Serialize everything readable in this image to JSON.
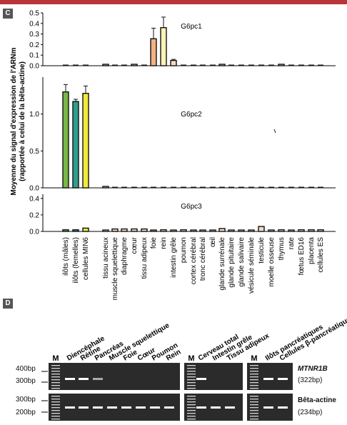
{
  "panels": {
    "c_label": "C",
    "d_label": "D"
  },
  "chart_data": {
    "type": "bar",
    "ylabel_line1": "Moyenne du signal d'expression de l'ARNm",
    "ylabel_line2": "(rapportée à celui de la bêta-actine)",
    "categories": [
      "ilôts (mâles)",
      "ilôts (femelles)",
      "cellules MIN6",
      "tissu acineux",
      "muscle squelettique",
      "diaphragme",
      "cœur",
      "tissu adipeux",
      "foie",
      "rein",
      "intestin grêle",
      "poumon",
      "cortex cérébral",
      "tronc cérébral",
      "œil",
      "glande surrénale",
      "glande pituitaire",
      "glande salivaire",
      "vésicule séminale",
      "testicule",
      "moelle osseuse",
      "thymus",
      "rate",
      "fœtus ED16",
      "placenta",
      "cellules ES"
    ],
    "bar_colors": [
      "#7ab648",
      "#2f9e8f",
      "#f2ea3a",
      "#f7d9c4",
      "#f7d9c4",
      "#f7d9c4",
      "#f7d9c4",
      "#f7d9c4",
      "#f4b183",
      "#fdf2b8",
      "#f7d9c4",
      "#f7d9c4",
      "#f7d9c4",
      "#f7d9c4",
      "#f7d9c4",
      "#f7d9c4",
      "#f7d9c4",
      "#f7d9c4",
      "#f7d9c4",
      "#f7d9c4",
      "#f7d9c4",
      "#f7d9c4",
      "#f7d9c4",
      "#f7d9c4",
      "#f7d9c4",
      "#f7d9c4"
    ],
    "subplots": [
      {
        "name": "G6pc1",
        "yticks": [
          "0.5",
          "0.4",
          "0.3",
          "0.2",
          "0.1",
          "0.0"
        ],
        "ylim": [
          0,
          0.5
        ],
        "values": [
          0,
          0,
          0,
          0.005,
          0,
          0,
          0.005,
          0,
          0.255,
          0.36,
          0.05,
          0,
          0,
          0,
          0,
          0.005,
          0,
          0,
          0,
          0,
          0,
          0.005,
          0,
          0,
          0,
          0
        ],
        "errors": [
          0,
          0,
          0,
          0,
          0,
          0,
          0,
          0,
          0.1,
          0.1,
          0.01,
          0,
          0,
          0,
          0,
          0,
          0,
          0,
          0,
          0,
          0,
          0,
          0,
          0,
          0,
          0
        ]
      },
      {
        "name": "G6pc2",
        "yticks": [
          "1.0",
          "0.5",
          "0.0"
        ],
        "ylim": [
          0,
          1.5
        ],
        "values": [
          1.3,
          1.17,
          1.28,
          0.01,
          0,
          0,
          0,
          0,
          0,
          0,
          0,
          0,
          0,
          0,
          0,
          0,
          0,
          0,
          0,
          0,
          0,
          0,
          0,
          0,
          0,
          0
        ],
        "errors": [
          0.1,
          0.03,
          0.1,
          0,
          0,
          0,
          0,
          0,
          0,
          0,
          0,
          0,
          0,
          0,
          0,
          0,
          0,
          0,
          0,
          0,
          0,
          0,
          0,
          0,
          0,
          0
        ]
      },
      {
        "name": "G6pc3",
        "yticks": [
          "0.4",
          "0.2",
          "0.0"
        ],
        "ylim": [
          0,
          0.45
        ],
        "values": [
          0.02,
          0.02,
          0.04,
          0.01,
          0.03,
          0.03,
          0.03,
          0.03,
          0.01,
          0.02,
          0.01,
          0.02,
          0.01,
          0.01,
          0.01,
          0.035,
          0.01,
          0.01,
          0.01,
          0.06,
          0.01,
          0.02,
          0.01,
          0.02,
          0.02,
          0.02
        ],
        "errors": [
          0,
          0,
          0,
          0,
          0,
          0,
          0,
          0,
          0,
          0,
          0,
          0,
          0,
          0,
          0,
          0,
          0,
          0,
          0,
          0,
          0,
          0,
          0,
          0,
          0,
          0
        ]
      }
    ]
  },
  "gel": {
    "lane_labels_1": [
      "Diencéphale",
      "Rétine",
      "Pancréas",
      "Muscle squelettique",
      "Foie",
      "Cœur",
      "Poumon",
      "Rein"
    ],
    "lane_labels_2": [
      "Cerveau total",
      "Intestin grêle",
      "Tissu adipeux"
    ],
    "lane_labels_3": [
      "Ilôts pancréatiques",
      "Cellules β-pancréatiques"
    ],
    "marker": "M",
    "bp_top": [
      "400bp",
      "300bp"
    ],
    "bp_bottom": [
      "300bp",
      "200bp"
    ],
    "gene1_name": "MTNR1B",
    "gene1_size": "(322bp)",
    "gene2_name": "Bêta-actine",
    "gene2_size": "(234bp)"
  }
}
